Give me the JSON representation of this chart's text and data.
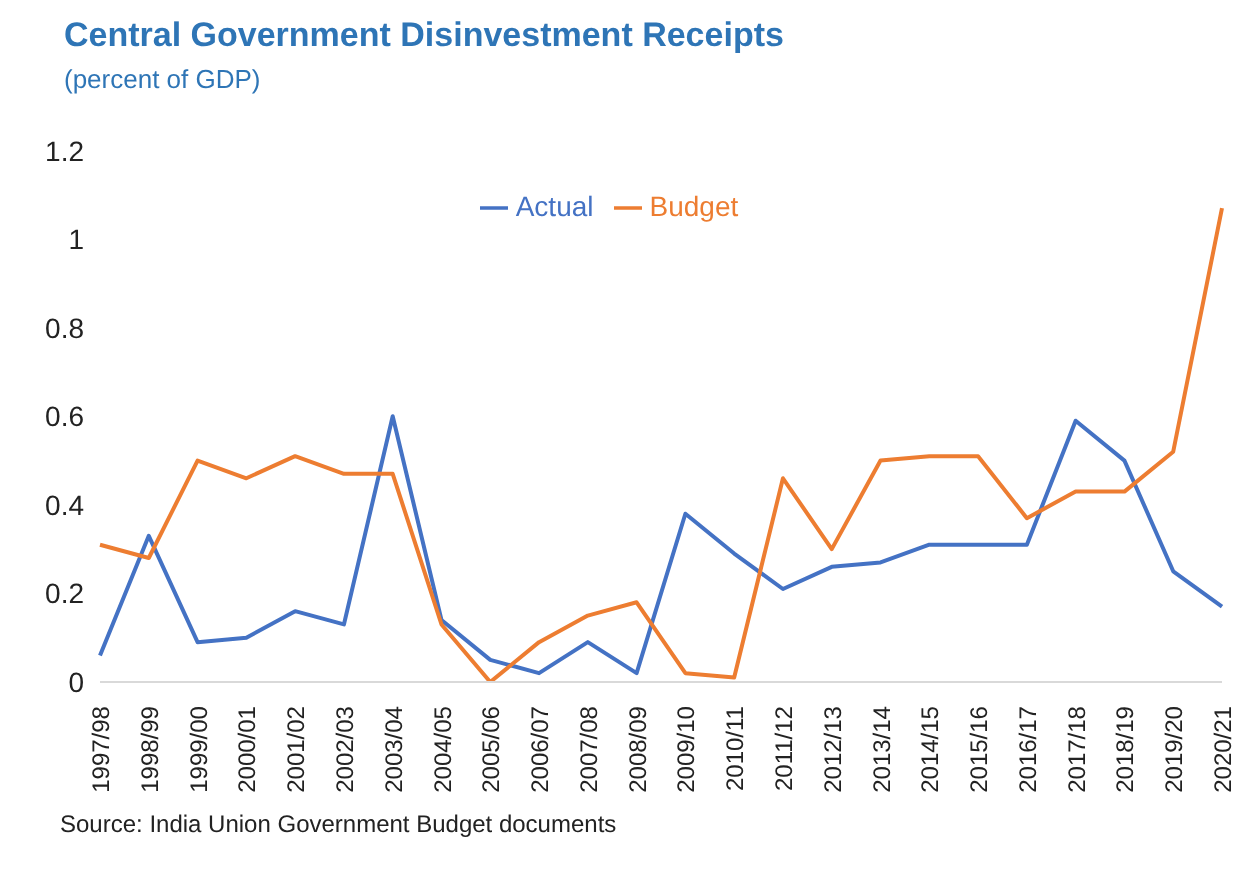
{
  "chart_data": {
    "type": "line",
    "title": "Central Government Disinvestment Receipts",
    "subtitle": "(percent of GDP)",
    "categories": [
      "1997/98",
      "1998/99",
      "1999/00",
      "2000/01",
      "2001/02",
      "2002/03",
      "2003/04",
      "2004/05",
      "2005/06",
      "2006/07",
      "2007/08",
      "2008/09",
      "2009/10",
      "2010/11",
      "2011/12",
      "2012/13",
      "2013/14",
      "2014/15",
      "2015/16",
      "2016/17",
      "2017/18",
      "2018/19",
      "2019/20",
      "2020/21"
    ],
    "series": [
      {
        "name": "Actual",
        "color": "#4472c4",
        "values": [
          0.06,
          0.33,
          0.09,
          0.1,
          0.16,
          0.13,
          0.6,
          0.14,
          0.05,
          0.02,
          0.09,
          0.02,
          0.38,
          0.29,
          0.21,
          0.26,
          0.27,
          0.31,
          0.31,
          0.31,
          0.59,
          0.5,
          0.25,
          0.17
        ]
      },
      {
        "name": "Budget",
        "color": "#ed7d31",
        "values": [
          0.31,
          0.28,
          0.5,
          0.46,
          0.51,
          0.47,
          0.47,
          0.13,
          0.0,
          0.09,
          0.15,
          0.18,
          0.02,
          0.01,
          0.46,
          0.3,
          0.5,
          0.51,
          0.51,
          0.37,
          0.43,
          0.43,
          0.52,
          1.07
        ]
      }
    ],
    "ylim": [
      0,
      1.2
    ],
    "yticks": [
      0,
      0.2,
      0.4,
      0.6,
      0.8,
      1,
      1.2
    ],
    "grid": false,
    "legend": "top",
    "marker": "none",
    "line_style": "solid",
    "annotations": [
      "Source: India Union Government Budget documents"
    ]
  }
}
